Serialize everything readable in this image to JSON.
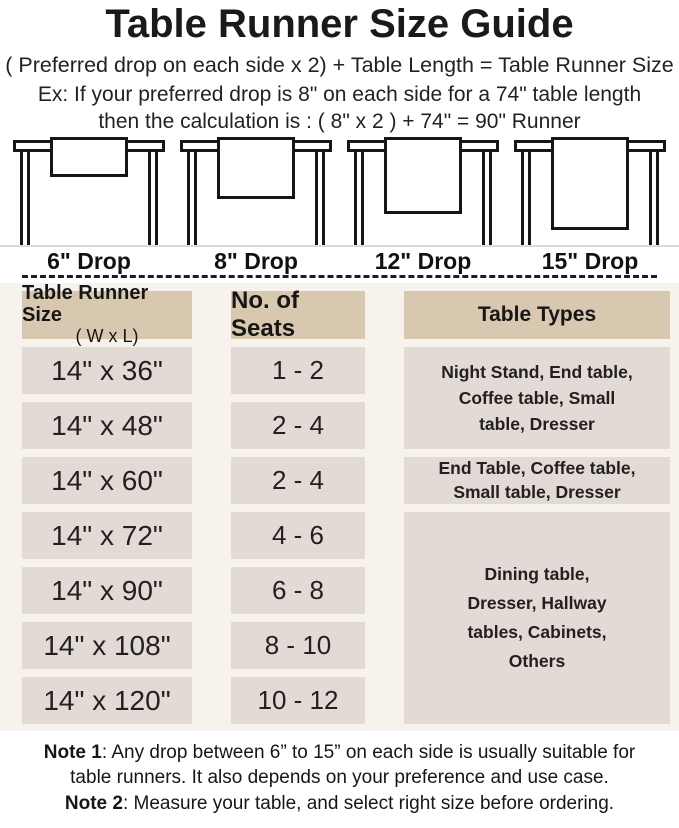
{
  "page": {
    "title": "Table Runner Size Guide",
    "formula": "( Preferred drop on each side x 2) + Table Length = Table Runner Size",
    "example_line1": "Ex: If your preferred drop is 8\" on each side for a 74\" table length",
    "example_line2": "then the calculation is : ( 8\" x 2 ) + 74\" = 90\" Runner"
  },
  "illustrations": {
    "drops": [
      {
        "label": "6\" Drop"
      },
      {
        "label": "8\" Drop"
      },
      {
        "label": "12\" Drop"
      },
      {
        "label": "15\" Drop"
      }
    ]
  },
  "size_table": {
    "headers": {
      "runner_size_title": "Table Runner Size",
      "runner_size_sub": "( W x L)",
      "seats": "No. of Seats",
      "types": "Table Types"
    },
    "rows": [
      {
        "size": "14\" x 36\"",
        "seats": "1 - 2"
      },
      {
        "size": "14\" x 48\"",
        "seats": "2 - 4"
      },
      {
        "size": "14\" x 60\"",
        "seats": "2 - 4"
      },
      {
        "size": "14\" x 72\"",
        "seats": "4 - 6"
      },
      {
        "size": "14\" x 90\"",
        "seats": "6 - 8"
      },
      {
        "size": "14\" x 108\"",
        "seats": "8 - 10"
      },
      {
        "size": "14\" x 120\"",
        "seats": "10 - 12"
      }
    ],
    "type_groups": [
      {
        "text": "Night Stand, End table,\nCoffee table, Small\ntable, Dresser",
        "rows_spanned": 2
      },
      {
        "text": "End Table, Coffee table,\nSmall table, Dresser",
        "rows_spanned": 1
      },
      {
        "text": "Dining table,\nDresser, Hallway\ntables, Cabinets,\nOthers",
        "rows_spanned": 4
      }
    ]
  },
  "notes": {
    "note1_label": "Note 1",
    "note1_line1": ": Any drop between 6” to 15” on each side is usually suitable for",
    "note1_line2": "table runners. It also depends on your preference and use case.",
    "note2_label": "Note 2",
    "note2_text": ": Measure your table, and select right size before ordering."
  },
  "colors": {
    "header_cell_bg": "#d9c8b0",
    "body_cell_bg": "#e2dad4",
    "section_bg": "#f8f2ec",
    "text": "#1a1a1a"
  }
}
